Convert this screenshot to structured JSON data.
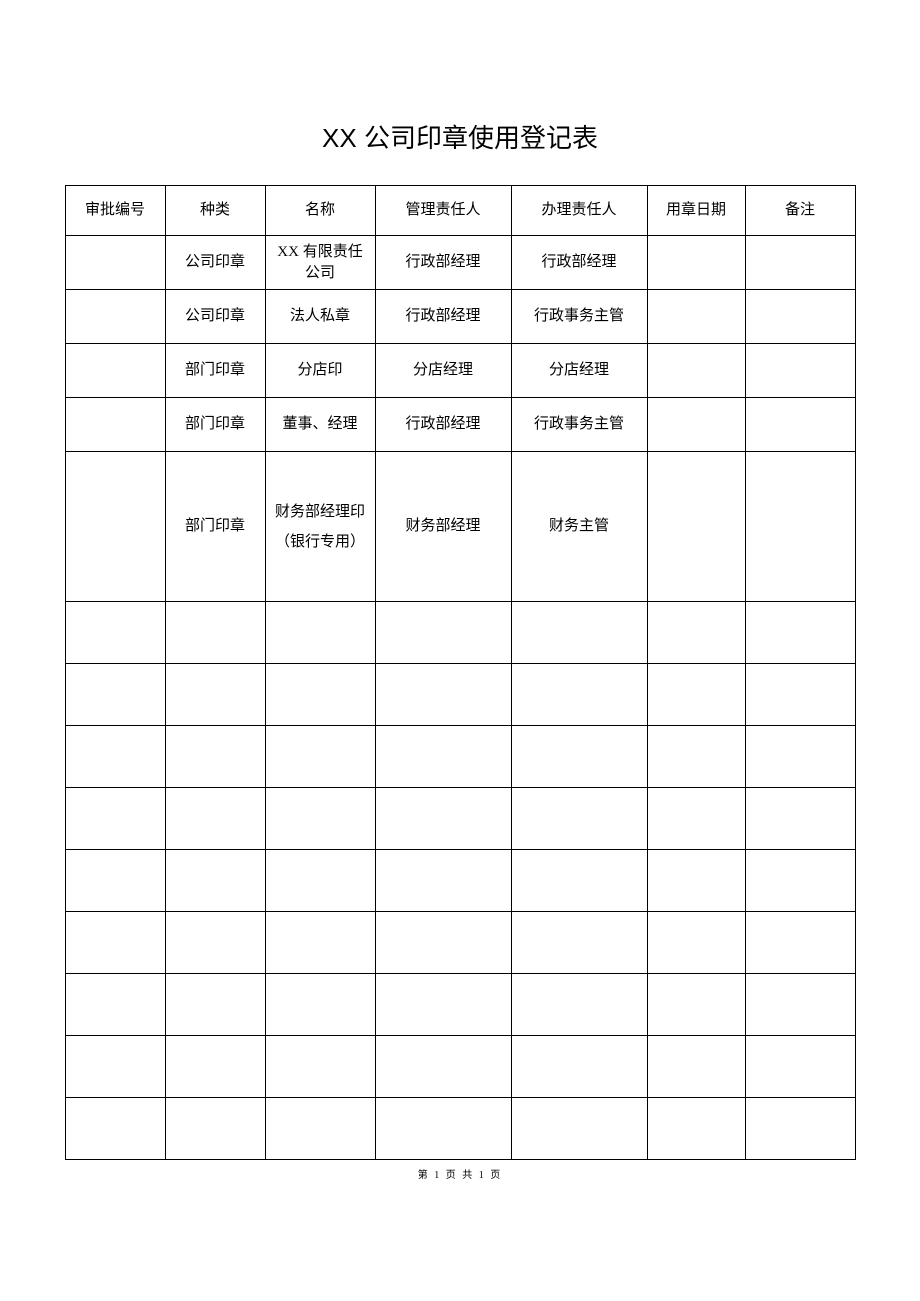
{
  "title": "XX 公司印章使用登记表",
  "table": {
    "columns": [
      {
        "label": "审批编号",
        "width": 100
      },
      {
        "label": "种类",
        "width": 100
      },
      {
        "label": "名称",
        "width": 110
      },
      {
        "label": "管理责任人",
        "width": 136
      },
      {
        "label": "办理责任人",
        "width": 136
      },
      {
        "label": "用章日期",
        "width": 98
      },
      {
        "label": "备注",
        "width": 110
      }
    ],
    "rows": [
      {
        "height_class": "row-normal",
        "cells": [
          "",
          "公司印章",
          "XX 有限责任\n公司",
          "行政部经理",
          "行政部经理",
          "",
          ""
        ]
      },
      {
        "height_class": "row-normal",
        "cells": [
          "",
          "公司印章",
          "法人私章",
          "行政部经理",
          "行政事务主管",
          "",
          ""
        ]
      },
      {
        "height_class": "row-normal",
        "cells": [
          "",
          "部门印章",
          "分店印",
          "分店经理",
          "分店经理",
          "",
          ""
        ]
      },
      {
        "height_class": "row-normal",
        "cells": [
          "",
          "部门印章",
          "董事、经理",
          "行政部经理",
          "行政事务主管",
          "",
          ""
        ]
      },
      {
        "height_class": "row-tall",
        "special_col": 2,
        "cells": [
          "",
          "部门印章",
          "财务部经理印\n（银行专用）",
          "财务部经理",
          "财务主管",
          "",
          ""
        ]
      },
      {
        "height_class": "row-empty",
        "cells": [
          "",
          "",
          "",
          "",
          "",
          "",
          ""
        ]
      },
      {
        "height_class": "row-empty",
        "cells": [
          "",
          "",
          "",
          "",
          "",
          "",
          ""
        ]
      },
      {
        "height_class": "row-empty",
        "cells": [
          "",
          "",
          "",
          "",
          "",
          "",
          ""
        ]
      },
      {
        "height_class": "row-empty",
        "cells": [
          "",
          "",
          "",
          "",
          "",
          "",
          ""
        ]
      },
      {
        "height_class": "row-empty",
        "cells": [
          "",
          "",
          "",
          "",
          "",
          "",
          ""
        ]
      },
      {
        "height_class": "row-empty",
        "cells": [
          "",
          "",
          "",
          "",
          "",
          "",
          ""
        ]
      },
      {
        "height_class": "row-empty",
        "cells": [
          "",
          "",
          "",
          "",
          "",
          "",
          ""
        ]
      },
      {
        "height_class": "row-empty",
        "cells": [
          "",
          "",
          "",
          "",
          "",
          "",
          ""
        ]
      },
      {
        "height_class": "row-empty",
        "cells": [
          "",
          "",
          "",
          "",
          "",
          "",
          ""
        ]
      }
    ],
    "border_color": "#000000",
    "background_color": "#ffffff",
    "font_size": 15
  },
  "footer": "第 1 页 共 1 页"
}
